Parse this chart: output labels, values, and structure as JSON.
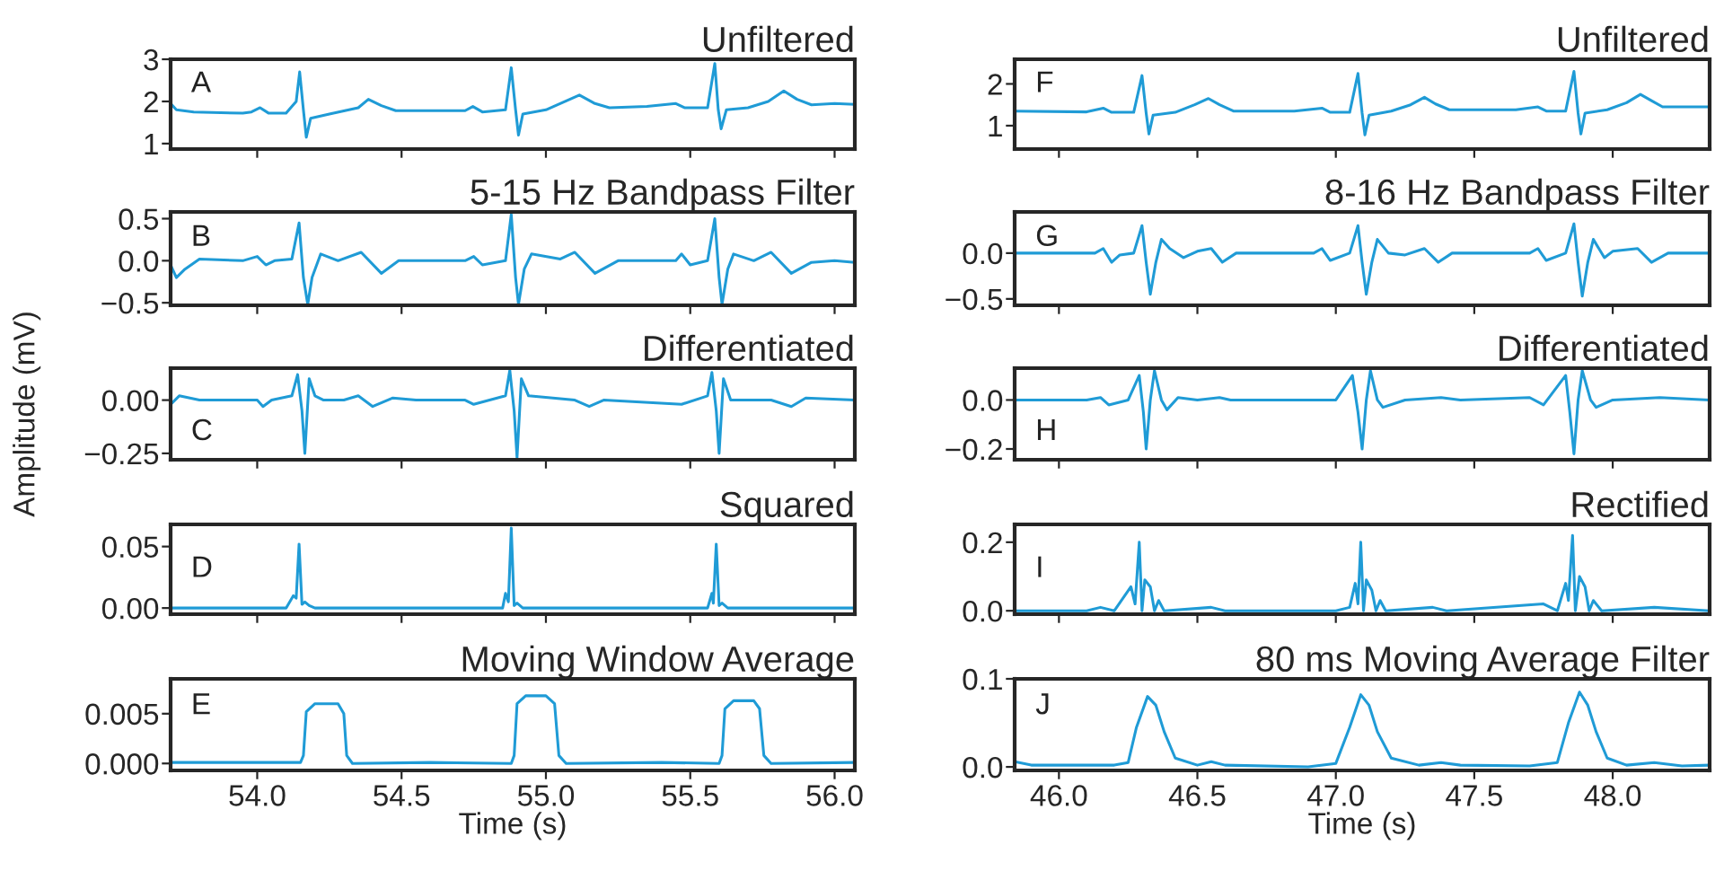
{
  "chart_data": [
    {
      "type": "line",
      "title": "Unfiltered",
      "annotations": [
        "A"
      ],
      "tick_labels": "y",
      "xlim": [
        53.7,
        56.07
      ],
      "xticks": [
        {
          "value": 54.0,
          "label": null
        },
        {
          "value": 54.5,
          "label": null
        },
        {
          "value": 55.0,
          "label": null
        },
        {
          "value": 55.5,
          "label": null
        },
        {
          "value": 56.0,
          "label": null
        }
      ],
      "ylim": [
        0.87,
        3.0
      ],
      "yticks": [
        1,
        2,
        3
      ],
      "series": [
        {
          "color": "#1f9bd6",
          "x": [
            53.7,
            53.72,
            53.78,
            53.95,
            53.98,
            54.01,
            54.04,
            54.1,
            54.135,
            54.147,
            54.16,
            54.17,
            54.185,
            54.25,
            54.35,
            54.385,
            54.43,
            54.48,
            54.6,
            54.72,
            54.747,
            54.78,
            54.86,
            54.88,
            54.895,
            54.905,
            54.92,
            55.0,
            55.116,
            55.17,
            55.22,
            55.35,
            55.45,
            55.48,
            55.56,
            55.585,
            55.597,
            55.607,
            55.625,
            55.7,
            55.77,
            55.824,
            55.87,
            55.92,
            56.0,
            56.07
          ],
          "values": [
            1.95,
            1.8,
            1.75,
            1.72,
            1.75,
            1.85,
            1.72,
            1.72,
            2.0,
            2.7,
            1.8,
            1.15,
            1.6,
            1.7,
            1.85,
            2.05,
            1.9,
            1.78,
            1.78,
            1.78,
            1.88,
            1.75,
            1.8,
            2.8,
            1.8,
            1.2,
            1.7,
            1.8,
            2.15,
            1.95,
            1.85,
            1.88,
            1.95,
            1.85,
            1.85,
            2.9,
            1.8,
            1.35,
            1.8,
            1.85,
            2.0,
            2.25,
            2.05,
            1.92,
            1.95,
            1.93
          ]
        }
      ]
    },
    {
      "type": "line",
      "title": "Unfiltered",
      "annotations": [
        "F"
      ],
      "tick_labels": "y",
      "xlim": [
        45.84,
        48.35
      ],
      "xticks": [
        {
          "value": 46.0,
          "label": null
        },
        {
          "value": 46.5,
          "label": null
        },
        {
          "value": 47.0,
          "label": null
        },
        {
          "value": 47.5,
          "label": null
        },
        {
          "value": 48.0,
          "label": null
        }
      ],
      "ylim": [
        0.44,
        2.59
      ],
      "yticks": [
        1,
        2
      ],
      "series": [
        {
          "color": "#1f9bd6",
          "x": [
            45.84,
            46.1,
            46.16,
            46.19,
            46.27,
            46.3,
            46.315,
            46.325,
            46.34,
            46.42,
            46.49,
            46.54,
            46.58,
            46.63,
            46.85,
            46.95,
            46.98,
            47.05,
            47.08,
            47.095,
            47.105,
            47.12,
            47.2,
            47.27,
            47.32,
            47.36,
            47.41,
            47.65,
            47.73,
            47.76,
            47.83,
            47.86,
            47.875,
            47.885,
            47.9,
            47.98,
            48.05,
            48.1,
            48.14,
            48.18,
            48.35
          ],
          "values": [
            1.35,
            1.33,
            1.42,
            1.32,
            1.32,
            2.2,
            1.3,
            0.8,
            1.25,
            1.32,
            1.5,
            1.65,
            1.5,
            1.35,
            1.35,
            1.42,
            1.32,
            1.32,
            2.25,
            1.3,
            0.78,
            1.25,
            1.35,
            1.5,
            1.68,
            1.52,
            1.38,
            1.38,
            1.45,
            1.35,
            1.35,
            2.3,
            1.3,
            0.8,
            1.3,
            1.38,
            1.55,
            1.75,
            1.6,
            1.45,
            1.45
          ]
        }
      ]
    },
    {
      "type": "line",
      "title": "5-15 Hz Bandpass Filter",
      "annotations": [
        "B"
      ],
      "tick_labels": "y",
      "xlim": [
        53.7,
        56.07
      ],
      "xticks": [
        {
          "value": 54.0,
          "label": null
        },
        {
          "value": 54.5,
          "label": null
        },
        {
          "value": 55.0,
          "label": null
        },
        {
          "value": 55.5,
          "label": null
        },
        {
          "value": 56.0,
          "label": null
        }
      ],
      "ylim": [
        -0.53,
        0.58
      ],
      "yticks": [
        {
          "value": -0.5,
          "label": "−0.5"
        },
        {
          "value": 0.0,
          "label": "0.0"
        },
        0.5
      ],
      "series": [
        {
          "color": "#1f9bd6",
          "x": [
            53.7,
            53.72,
            53.75,
            53.8,
            53.95,
            54.0,
            54.03,
            54.06,
            54.12,
            54.145,
            54.16,
            54.175,
            54.19,
            54.22,
            54.28,
            54.36,
            54.43,
            54.49,
            54.6,
            54.72,
            54.75,
            54.78,
            54.86,
            54.88,
            54.895,
            54.905,
            54.925,
            54.95,
            55.05,
            55.1,
            55.17,
            55.25,
            55.45,
            55.47,
            55.5,
            55.56,
            55.585,
            55.6,
            55.61,
            55.63,
            55.65,
            55.72,
            55.78,
            55.85,
            55.92,
            56.0,
            56.07
          ],
          "values": [
            -0.05,
            -0.2,
            -0.1,
            0.02,
            0.0,
            0.05,
            -0.05,
            0.0,
            0.02,
            0.45,
            -0.2,
            -0.52,
            -0.2,
            0.08,
            0.0,
            0.1,
            -0.15,
            0.0,
            0.0,
            0.0,
            0.05,
            -0.05,
            0.0,
            0.55,
            -0.2,
            -0.52,
            -0.1,
            0.08,
            0.02,
            0.1,
            -0.15,
            0.0,
            0.0,
            0.08,
            -0.05,
            0.0,
            0.5,
            -0.2,
            -0.52,
            -0.1,
            0.08,
            0.0,
            0.1,
            -0.15,
            -0.02,
            0.0,
            -0.02
          ]
        }
      ]
    },
    {
      "type": "line",
      "title": "8-16 Hz Bandpass Filter",
      "annotations": [
        "G"
      ],
      "tick_labels": "y",
      "xlim": [
        45.84,
        48.35
      ],
      "xticks": [
        {
          "value": 46.0,
          "label": null
        },
        {
          "value": 46.5,
          "label": null
        },
        {
          "value": 47.0,
          "label": null
        },
        {
          "value": 47.5,
          "label": null
        },
        {
          "value": 48.0,
          "label": null
        }
      ],
      "ylim": [
        -0.57,
        0.45
      ],
      "yticks": [
        {
          "value": -0.5,
          "label": "−0.5"
        },
        {
          "value": 0.0,
          "label": "0.0"
        }
      ],
      "series": [
        {
          "color": "#1f9bd6",
          "x": [
            45.84,
            46.13,
            46.16,
            46.19,
            46.22,
            46.27,
            46.3,
            46.315,
            46.33,
            46.35,
            46.37,
            46.4,
            46.45,
            46.5,
            46.55,
            46.59,
            46.64,
            46.92,
            46.95,
            46.98,
            47.05,
            47.08,
            47.095,
            47.11,
            47.13,
            47.15,
            47.19,
            47.25,
            47.32,
            47.37,
            47.42,
            47.7,
            47.73,
            47.76,
            47.83,
            47.86,
            47.875,
            47.89,
            47.91,
            47.93,
            47.97,
            48.0,
            48.09,
            48.14,
            48.2,
            48.35
          ],
          "values": [
            0.0,
            0.0,
            0.05,
            -0.1,
            -0.02,
            0.0,
            0.3,
            -0.1,
            -0.45,
            -0.1,
            0.15,
            0.05,
            -0.05,
            0.02,
            0.05,
            -0.1,
            0.0,
            0.0,
            0.05,
            -0.08,
            0.0,
            0.3,
            -0.1,
            -0.45,
            -0.1,
            0.15,
            0.0,
            -0.02,
            0.05,
            -0.1,
            0.0,
            0.0,
            0.05,
            -0.08,
            0.0,
            0.32,
            -0.1,
            -0.47,
            -0.1,
            0.15,
            -0.05,
            0.02,
            0.05,
            -0.1,
            0.0,
            0.0
          ]
        }
      ]
    },
    {
      "type": "line",
      "title": "Differentiated",
      "ylabel": "Amplitude (mV)",
      "annotations": [
        "C"
      ],
      "tick_labels": "y",
      "xlim": [
        53.7,
        56.07
      ],
      "xticks": [
        {
          "value": 54.0,
          "label": null
        },
        {
          "value": 54.5,
          "label": null
        },
        {
          "value": 55.0,
          "label": null
        },
        {
          "value": 55.5,
          "label": null
        },
        {
          "value": 56.0,
          "label": null
        }
      ],
      "ylim": [
        -0.28,
        0.15
      ],
      "yticks": [
        {
          "value": -0.25,
          "label": "−0.25"
        },
        {
          "value": 0.0,
          "label": "0.00"
        }
      ],
      "series": [
        {
          "color": "#1f9bd6",
          "x": [
            53.7,
            53.73,
            53.8,
            54.0,
            54.02,
            54.05,
            54.12,
            54.14,
            54.155,
            54.165,
            54.18,
            54.2,
            54.23,
            54.3,
            54.35,
            54.4,
            54.47,
            54.55,
            54.72,
            54.75,
            54.86,
            54.875,
            54.89,
            54.9,
            54.915,
            54.94,
            55.1,
            55.15,
            55.2,
            55.47,
            55.56,
            55.575,
            55.59,
            55.6,
            55.615,
            55.64,
            55.78,
            55.85,
            55.9,
            56.07
          ],
          "values": [
            -0.02,
            0.02,
            0.0,
            0.0,
            -0.03,
            0.0,
            0.02,
            0.12,
            -0.05,
            -0.25,
            0.1,
            0.02,
            0.0,
            0.0,
            0.02,
            -0.03,
            0.01,
            0.0,
            0.0,
            -0.02,
            0.02,
            0.14,
            -0.05,
            -0.27,
            0.1,
            0.02,
            0.0,
            -0.03,
            0.0,
            -0.02,
            0.02,
            0.13,
            -0.05,
            -0.25,
            0.1,
            0.0,
            0.0,
            -0.03,
            0.01,
            0.0
          ]
        }
      ]
    },
    {
      "type": "line",
      "title": "Differentiated",
      "annotations": [
        "H"
      ],
      "tick_labels": "y",
      "xlim": [
        45.84,
        48.35
      ],
      "xticks": [
        {
          "value": 46.0,
          "label": null
        },
        {
          "value": 46.5,
          "label": null
        },
        {
          "value": 47.0,
          "label": null
        },
        {
          "value": 47.5,
          "label": null
        },
        {
          "value": 48.0,
          "label": null
        }
      ],
      "ylim": [
        -0.244,
        0.13
      ],
      "yticks": [
        {
          "value": -0.2,
          "label": "−0.2"
        },
        {
          "value": 0.0,
          "label": "0.0"
        }
      ],
      "series": [
        {
          "color": "#1f9bd6",
          "x": [
            45.84,
            46.1,
            46.15,
            46.18,
            46.25,
            46.29,
            46.305,
            46.315,
            46.33,
            46.345,
            46.37,
            46.39,
            46.43,
            46.5,
            46.58,
            46.62,
            47.0,
            47.06,
            47.08,
            47.095,
            47.11,
            47.125,
            47.15,
            47.17,
            47.25,
            47.38,
            47.45,
            47.7,
            47.75,
            47.83,
            47.845,
            47.86,
            47.875,
            47.89,
            47.92,
            47.94,
            48.0,
            48.17,
            48.35
          ],
          "values": [
            0.0,
            0.0,
            0.01,
            -0.02,
            0.0,
            0.1,
            -0.05,
            -0.2,
            0.0,
            0.12,
            0.0,
            -0.04,
            0.01,
            0.0,
            0.01,
            0.0,
            0.0,
            0.1,
            -0.05,
            -0.2,
            0.0,
            0.12,
            0.0,
            -0.03,
            0.0,
            0.01,
            0.0,
            0.01,
            -0.02,
            0.1,
            -0.05,
            -0.22,
            0.0,
            0.12,
            0.0,
            -0.03,
            0.0,
            0.01,
            0.0
          ]
        }
      ]
    },
    {
      "type": "line",
      "title": "Squared",
      "annotations": [
        "D"
      ],
      "tick_labels": "y",
      "xlim": [
        53.7,
        56.07
      ],
      "xticks": [
        {
          "value": 54.0,
          "label": null
        },
        {
          "value": 54.5,
          "label": null
        },
        {
          "value": 55.0,
          "label": null
        },
        {
          "value": 55.5,
          "label": null
        },
        {
          "value": 56.0,
          "label": null
        }
      ],
      "ylim": [
        -0.005,
        0.068
      ],
      "yticks": [
        {
          "value": 0.0,
          "label": "0.00"
        },
        0.05
      ],
      "series": [
        {
          "color": "#1f9bd6",
          "x": [
            53.7,
            54.1,
            54.125,
            54.135,
            54.145,
            54.155,
            54.165,
            54.18,
            54.2,
            54.85,
            54.86,
            54.87,
            54.88,
            54.89,
            54.9,
            54.92,
            55.56,
            55.575,
            55.58,
            55.59,
            55.6,
            55.61,
            55.63,
            56.07
          ],
          "values": [
            0.0,
            0.0,
            0.01,
            0.008,
            0.052,
            0.003,
            0.005,
            0.002,
            0.0,
            0.0,
            0.012,
            0.005,
            0.065,
            0.002,
            0.004,
            0.0,
            0.0,
            0.012,
            0.004,
            0.052,
            0.002,
            0.004,
            0.0,
            0.0
          ]
        }
      ]
    },
    {
      "type": "line",
      "title": "Rectified",
      "annotations": [
        "I"
      ],
      "tick_labels": "y",
      "xlim": [
        45.84,
        48.35
      ],
      "xticks": [
        {
          "value": 46.0,
          "label": null
        },
        {
          "value": 46.5,
          "label": null
        },
        {
          "value": 47.0,
          "label": null
        },
        {
          "value": 47.5,
          "label": null
        },
        {
          "value": 48.0,
          "label": null
        }
      ],
      "ylim": [
        -0.01,
        0.252
      ],
      "yticks": [
        {
          "value": 0.0,
          "label": "0.0"
        },
        0.2
      ],
      "series": [
        {
          "color": "#1f9bd6",
          "x": [
            45.84,
            46.1,
            46.15,
            46.2,
            46.26,
            46.275,
            46.29,
            46.3,
            46.31,
            46.33,
            46.345,
            46.36,
            46.38,
            46.55,
            46.6,
            47.0,
            47.05,
            47.07,
            47.08,
            47.09,
            47.1,
            47.11,
            47.13,
            47.145,
            47.16,
            47.18,
            47.35,
            47.4,
            47.75,
            47.8,
            47.83,
            47.84,
            47.855,
            47.865,
            47.88,
            47.9,
            47.915,
            47.93,
            47.96,
            48.15,
            48.35
          ],
          "values": [
            0.0,
            0.0,
            0.01,
            0.0,
            0.07,
            0.02,
            0.2,
            0.0,
            0.09,
            0.07,
            0.0,
            0.03,
            0.0,
            0.01,
            0.0,
            0.0,
            0.01,
            0.08,
            0.02,
            0.2,
            0.0,
            0.09,
            0.06,
            0.0,
            0.03,
            0.0,
            0.01,
            0.0,
            0.02,
            0.0,
            0.08,
            0.03,
            0.22,
            0.0,
            0.1,
            0.07,
            0.0,
            0.03,
            0.0,
            0.01,
            0.0
          ]
        }
      ]
    },
    {
      "type": "line",
      "title": "Moving Window Average",
      "xlabel": "Time (s)",
      "annotations": [
        "E"
      ],
      "xlim": [
        53.7,
        56.07
      ],
      "xticks": [
        {
          "value": 54.0,
          "label": "54.0"
        },
        54.5,
        {
          "value": 55.0,
          "label": "55.0"
        },
        55.5,
        {
          "value": 56.0,
          "label": "56.0"
        }
      ],
      "ylim": [
        -0.0007,
        0.0085
      ],
      "yticks": [
        {
          "value": 0.0,
          "label": "0.000"
        },
        0.005
      ],
      "series": [
        {
          "color": "#1f9bd6",
          "x": [
            53.7,
            54.15,
            54.16,
            54.17,
            54.2,
            54.28,
            54.3,
            54.31,
            54.33,
            54.6,
            54.88,
            54.89,
            54.9,
            54.93,
            55.0,
            55.03,
            55.045,
            55.07,
            55.4,
            55.6,
            55.61,
            55.62,
            55.65,
            55.72,
            55.74,
            55.755,
            55.78,
            56.07
          ],
          "values": [
            0.0001,
            0.0001,
            0.0008,
            0.0052,
            0.006,
            0.006,
            0.005,
            0.0008,
            0.0,
            0.0001,
            0.0,
            0.0008,
            0.006,
            0.0068,
            0.0068,
            0.006,
            0.0008,
            0.0,
            0.0001,
            0.0,
            0.0008,
            0.0055,
            0.0063,
            0.0063,
            0.0055,
            0.0008,
            0.0,
            0.0001
          ]
        }
      ]
    },
    {
      "type": "line",
      "title": "80 ms Moving Average Filter",
      "xlabel": "Time (s)",
      "annotations": [
        "J"
      ],
      "xlim": [
        45.84,
        48.35
      ],
      "xticks": [
        {
          "value": 46.0,
          "label": "46.0"
        },
        46.5,
        {
          "value": 47.0,
          "label": "47.0"
        },
        47.5,
        {
          "value": 48.0,
          "label": "48.0"
        }
      ],
      "ylim": [
        -0.004,
        0.1
      ],
      "yticks": [
        {
          "value": 0.0,
          "label": "0.0"
        },
        0.1
      ],
      "series": [
        {
          "color": "#1f9bd6",
          "x": [
            45.84,
            45.9,
            46.2,
            46.25,
            46.28,
            46.32,
            46.35,
            46.38,
            46.42,
            46.5,
            46.55,
            46.6,
            46.9,
            47.0,
            47.05,
            47.09,
            47.12,
            47.15,
            47.2,
            47.3,
            47.38,
            47.45,
            47.7,
            47.8,
            47.84,
            47.88,
            47.91,
            47.94,
            47.98,
            48.05,
            48.15,
            48.25,
            48.35
          ],
          "values": [
            0.006,
            0.002,
            0.002,
            0.005,
            0.045,
            0.08,
            0.07,
            0.04,
            0.01,
            0.002,
            0.006,
            0.002,
            0.0,
            0.004,
            0.045,
            0.082,
            0.07,
            0.04,
            0.01,
            0.002,
            0.005,
            0.002,
            0.001,
            0.005,
            0.05,
            0.085,
            0.07,
            0.04,
            0.01,
            0.002,
            0.005,
            0.001,
            0.002
          ]
        }
      ]
    }
  ]
}
